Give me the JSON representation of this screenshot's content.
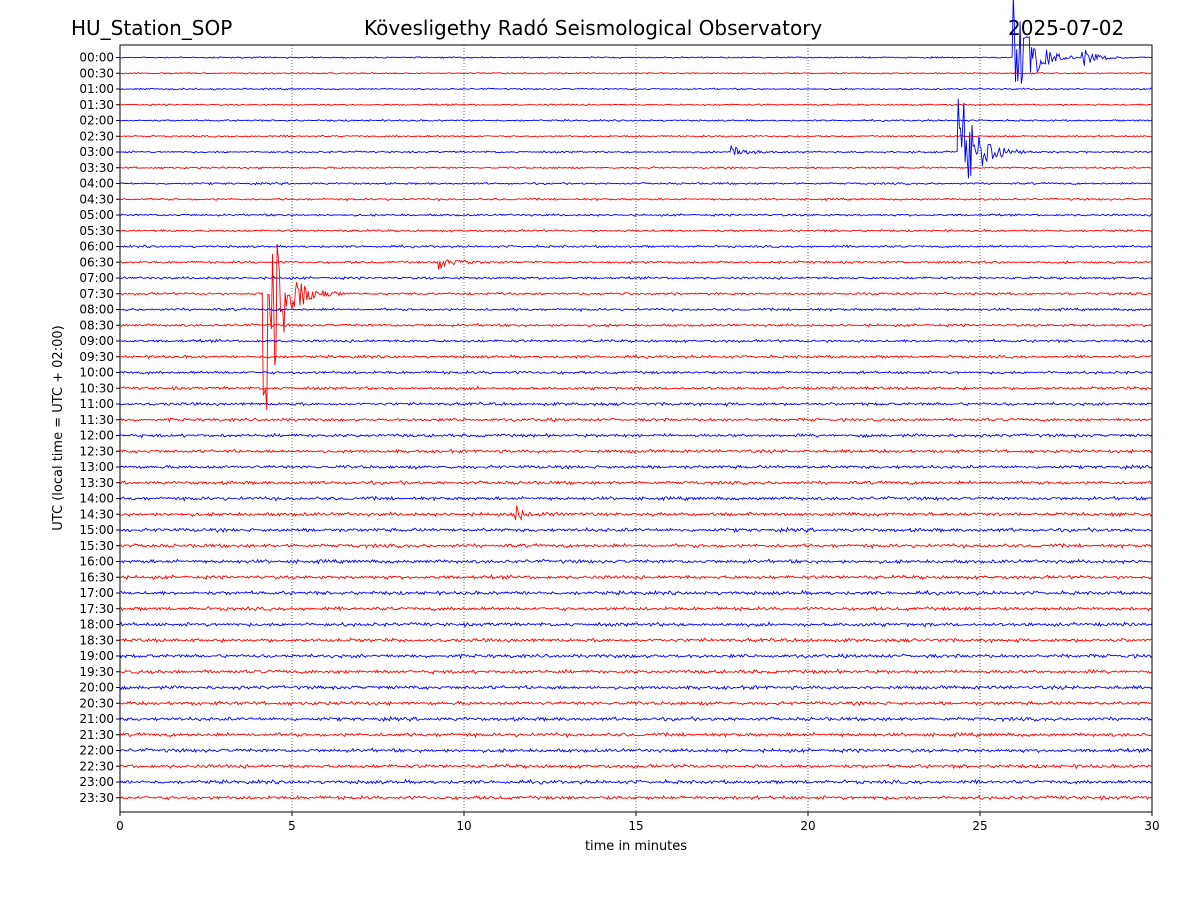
{
  "header": {
    "station": "HU_Station_SOP",
    "title": "Kövesligethy Radó Seismological Observatory",
    "date": "2025-07-02"
  },
  "chart_data": {
    "type": "line",
    "title": "Kövesligethy Radó Seismological Observatory",
    "xlabel": "time in minutes",
    "ylabel": "UTC (local time = UTC + 02:00)",
    "xlim": [
      0,
      30
    ],
    "x_ticks": [
      0,
      5,
      10,
      15,
      20,
      25,
      30
    ],
    "grid": "vertical dotted lines at x ticks",
    "rows": [
      "00:00",
      "00:30",
      "01:00",
      "01:30",
      "02:00",
      "02:30",
      "03:00",
      "03:30",
      "04:00",
      "04:30",
      "05:00",
      "05:30",
      "06:00",
      "06:30",
      "07:00",
      "07:30",
      "08:00",
      "08:30",
      "09:00",
      "09:30",
      "10:00",
      "10:30",
      "11:00",
      "11:30",
      "12:00",
      "12:30",
      "13:00",
      "13:30",
      "14:00",
      "14:30",
      "15:00",
      "15:30",
      "16:00",
      "16:30",
      "17:00",
      "17:30",
      "18:00",
      "18:30",
      "19:00",
      "19:30",
      "20:00",
      "20:30",
      "21:00",
      "21:30",
      "22:00",
      "22:30",
      "23:00",
      "23:30"
    ],
    "row_colors": [
      "#0000ff",
      "#ff0000"
    ],
    "events": [
      {
        "row": "00:00",
        "minute": 26.0,
        "peak": 4.0,
        "note": "large event spike"
      },
      {
        "row": "00:00",
        "minute": 28.0,
        "peak": 0.6,
        "note": "small event"
      },
      {
        "row": "03:00",
        "minute": 24.4,
        "peak": 4.5,
        "note": "large event"
      },
      {
        "row": "03:00",
        "minute": 17.8,
        "peak": 0.4,
        "note": "minor burst"
      },
      {
        "row": "07:30",
        "minute": 4.2,
        "peak": 9.0,
        "note": "large event with long coda"
      },
      {
        "row": "06:30",
        "minute": 9.3,
        "peak": 0.5,
        "note": "minor burst"
      },
      {
        "row": "14:30",
        "minute": 11.5,
        "peak": 0.5,
        "note": "noise burst"
      }
    ]
  }
}
